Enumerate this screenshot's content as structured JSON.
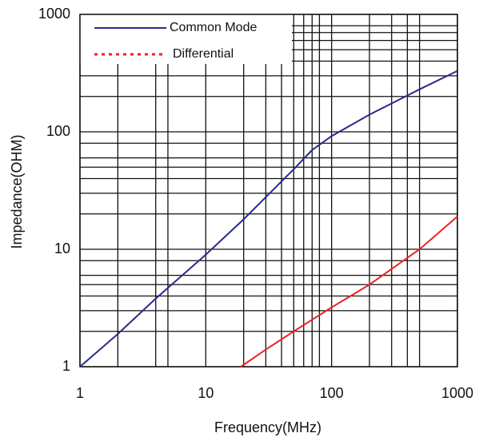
{
  "chart_data": {
    "type": "line",
    "x_label": "Frequency(MHz)",
    "y_label": "Impedance(OHM)",
    "log_x": true,
    "log_y": true,
    "grid": true,
    "legend": "upper left",
    "xlim": [
      1,
      1000
    ],
    "ylim": [
      1,
      1000
    ],
    "xticks": [
      1,
      10,
      100,
      1000
    ],
    "yticks": [
      1,
      10,
      100,
      1000
    ],
    "xminorticks": [
      2,
      4,
      5,
      20,
      30,
      40,
      50,
      60,
      70,
      80,
      200,
      300,
      400,
      500
    ],
    "yminorticks": [
      2,
      3,
      4,
      5,
      6,
      8,
      20,
      30,
      40,
      50,
      60,
      80,
      200,
      300,
      400,
      500,
      600,
      700,
      800
    ],
    "series": [
      {
        "name": "Common Mode",
        "color": "#2a2a8c",
        "x": [
          1,
          2,
          4,
          10,
          20,
          50,
          70,
          100,
          200,
          500,
          1000
        ],
        "values": [
          1,
          1.9,
          3.8,
          9,
          18,
          48,
          70,
          92,
          140,
          230,
          330
        ]
      },
      {
        "name": "Differential",
        "color": "#ee2222",
        "x": [
          19,
          30,
          50,
          100,
          200,
          500,
          1000
        ],
        "values": [
          1,
          1.4,
          2,
          3.2,
          5,
          10,
          19
        ]
      }
    ]
  }
}
